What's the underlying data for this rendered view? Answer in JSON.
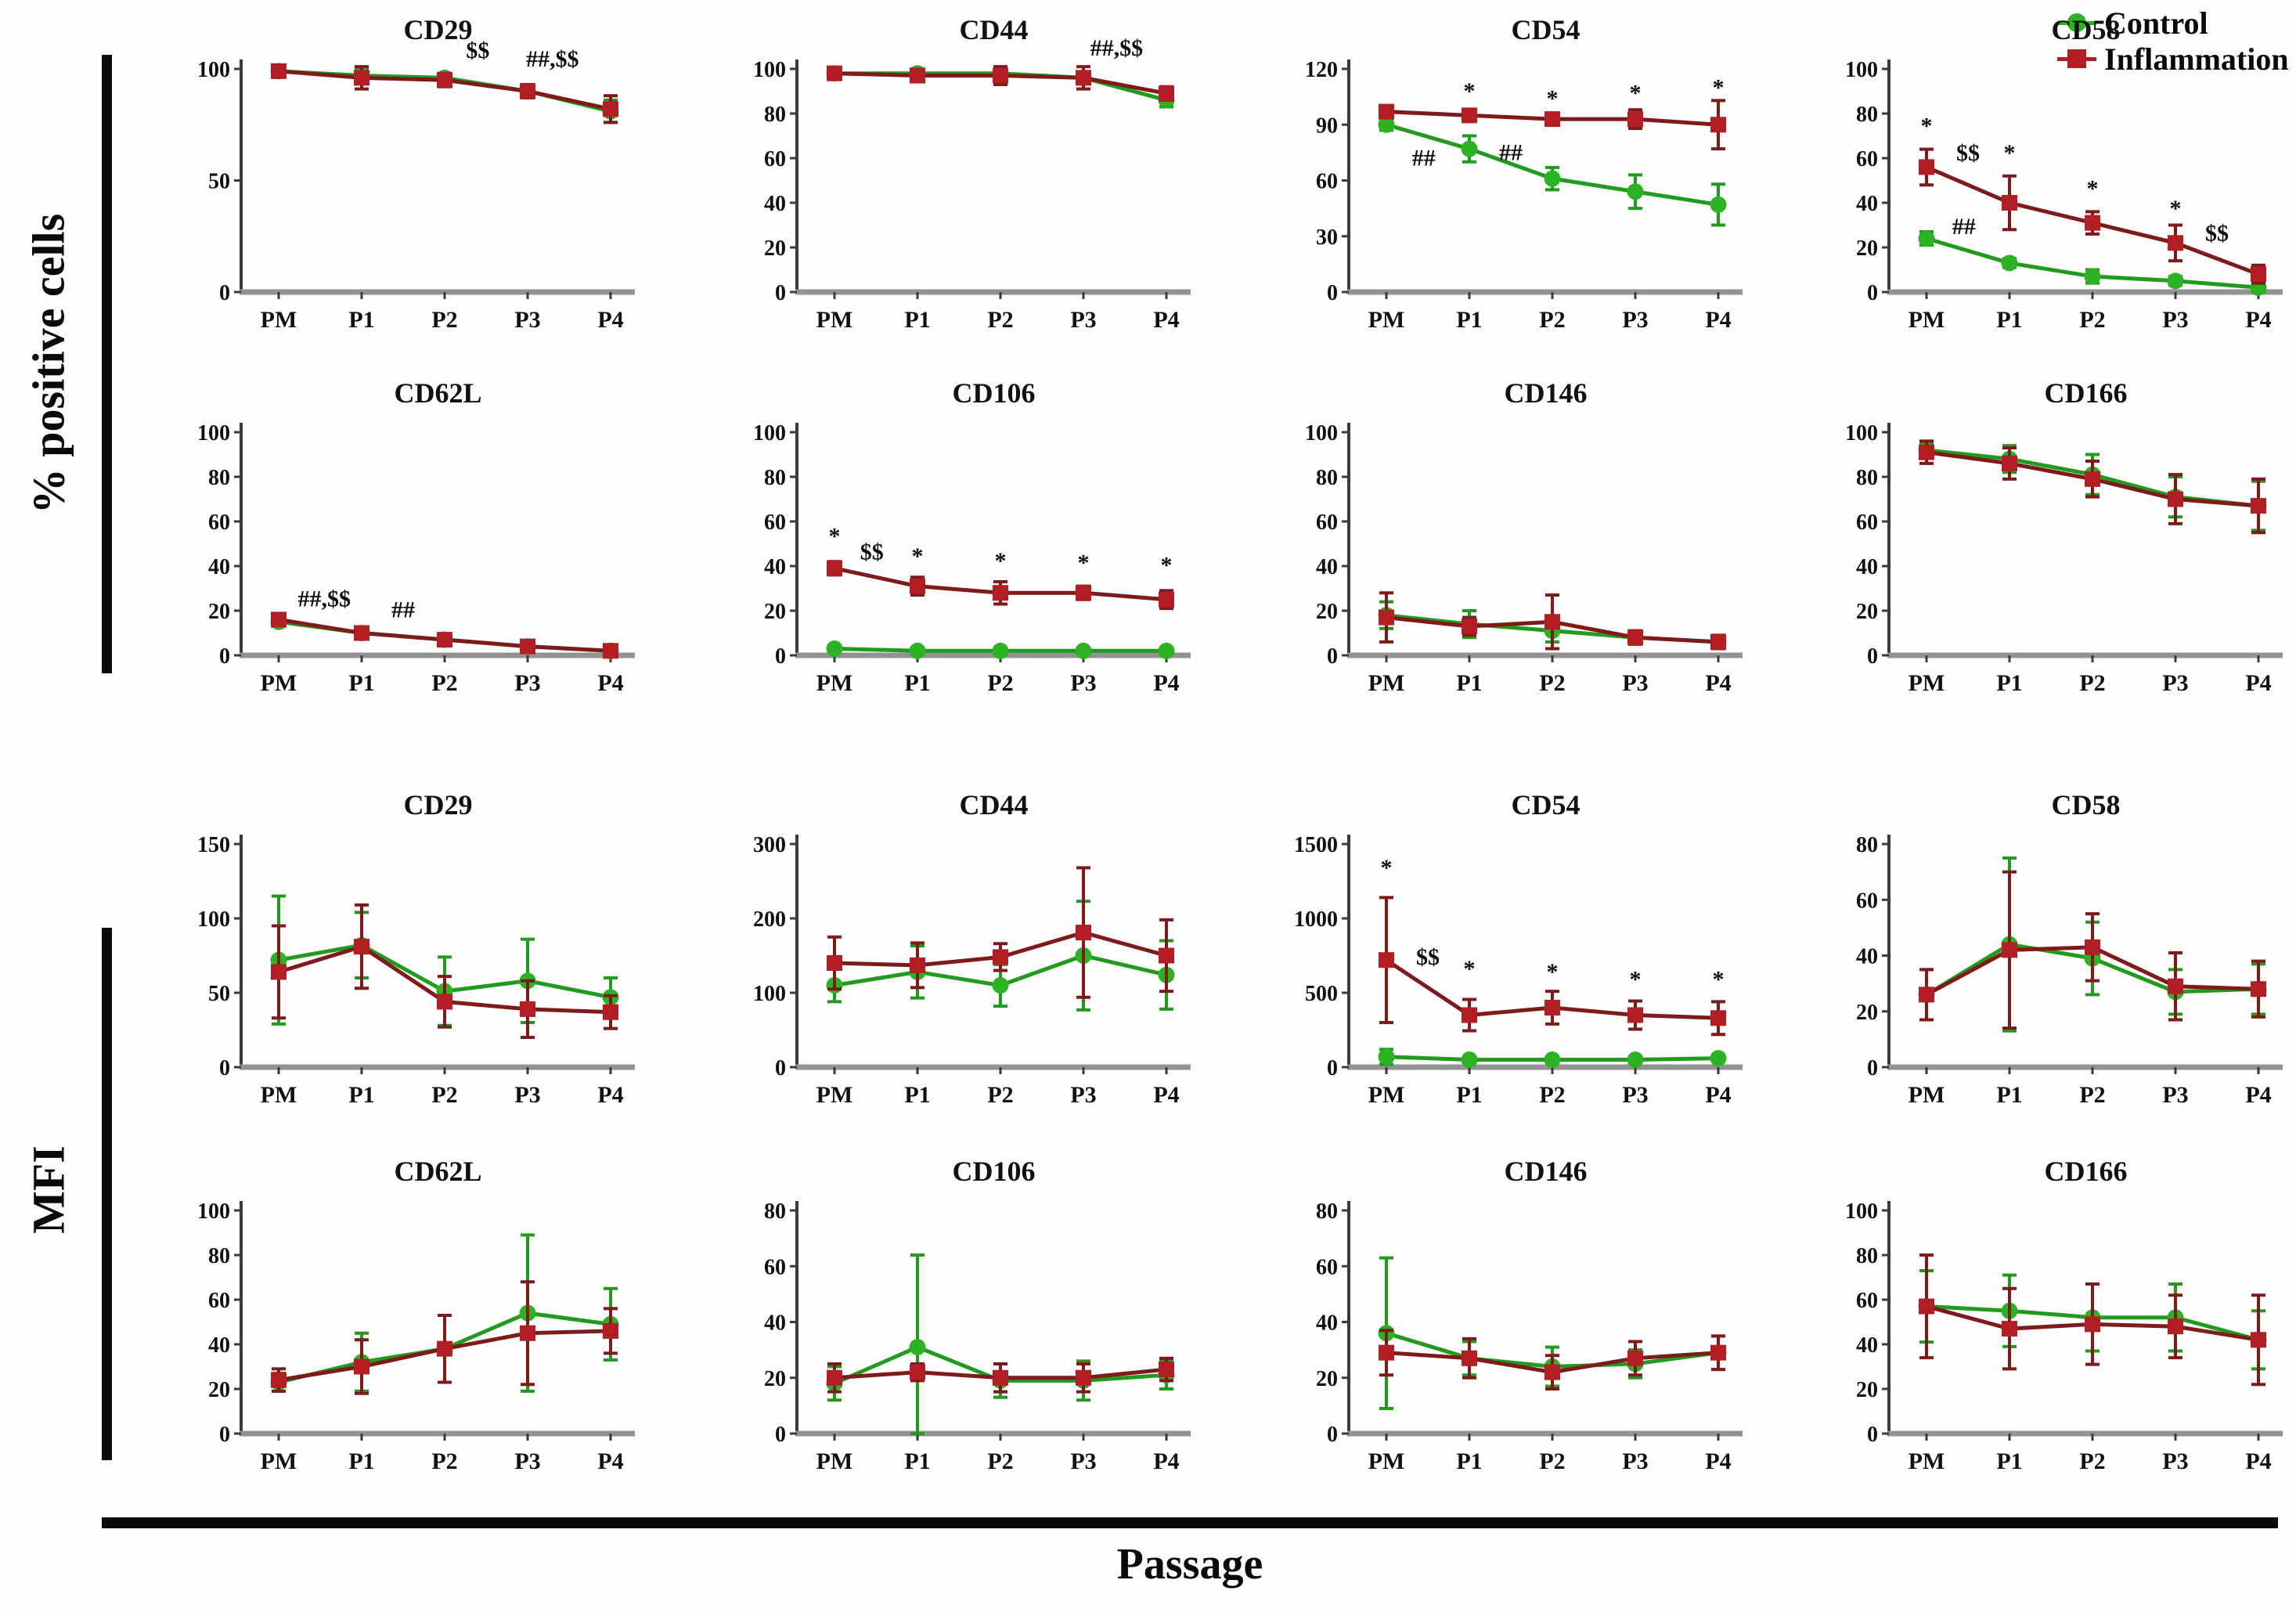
{
  "figure": {
    "categories": [
      "PM",
      "P1",
      "P2",
      "P3",
      "P4"
    ],
    "x_axis_label": "Passage",
    "sections": [
      {
        "label": "% positive cells"
      },
      {
        "label": "MFI"
      }
    ],
    "legend": {
      "items": [
        {
          "label": "Control",
          "marker": "circle",
          "color": "#2BB324",
          "line_color": "#229A1E"
        },
        {
          "label": "Inflammation",
          "marker": "square",
          "color": "#B21E24",
          "line_color": "#7E1A1A"
        }
      ]
    },
    "annotation_color": "#0d0d0d"
  },
  "chart_data": [
    {
      "type": "line",
      "title": "CD29",
      "section": "% positive cells",
      "ylim": [
        0,
        100
      ],
      "yticks": [
        0,
        50,
        100
      ],
      "series": [
        {
          "name": "Control",
          "values": [
            99,
            97,
            96,
            90,
            81
          ],
          "err": [
            1,
            3,
            2,
            2,
            5
          ]
        },
        {
          "name": "Inflammation",
          "values": [
            99,
            96,
            95,
            90,
            82
          ],
          "err": [
            1,
            5,
            3,
            3,
            6
          ]
        }
      ],
      "annotations": [
        {
          "text": "$$",
          "x": 2.4,
          "y": 105
        },
        {
          "text": "##,$$",
          "x": 3.3,
          "y": 101
        }
      ]
    },
    {
      "type": "line",
      "title": "CD44",
      "section": "% positive cells",
      "ylim": [
        0,
        100
      ],
      "yticks": [
        0,
        20,
        40,
        60,
        80,
        100
      ],
      "series": [
        {
          "name": "Control",
          "values": [
            98,
            98,
            98,
            96,
            86
          ],
          "err": [
            1,
            2,
            2,
            2,
            3
          ]
        },
        {
          "name": "Inflammation",
          "values": [
            98,
            97,
            97,
            96,
            89
          ],
          "err": [
            1,
            2,
            4,
            5,
            3
          ]
        }
      ],
      "annotations": [
        {
          "text": "##,$$",
          "x": 3.4,
          "y": 106
        }
      ]
    },
    {
      "type": "line",
      "title": "CD54",
      "section": "% positive cells",
      "ylim": [
        0,
        120
      ],
      "yticks": [
        0,
        30,
        60,
        90,
        120
      ],
      "series": [
        {
          "name": "Control",
          "values": [
            90,
            77,
            61,
            54,
            47
          ],
          "err": [
            3,
            7,
            6,
            9,
            11
          ]
        },
        {
          "name": "Inflammation",
          "values": [
            97,
            95,
            93,
            93,
            90
          ],
          "err": [
            2,
            2,
            2,
            5,
            13
          ]
        }
      ],
      "annotations": [
        {
          "text": "*",
          "x": 1,
          "y": 104
        },
        {
          "text": "*",
          "x": 2,
          "y": 100
        },
        {
          "text": "*",
          "x": 3,
          "y": 103
        },
        {
          "text": "*",
          "x": 4,
          "y": 106
        },
        {
          "text": "##",
          "x": 0.45,
          "y": 68
        },
        {
          "text": "##",
          "x": 1.5,
          "y": 71
        }
      ]
    },
    {
      "type": "line",
      "title": "CD58",
      "section": "% positive cells",
      "ylim": [
        0,
        100
      ],
      "yticks": [
        0,
        20,
        40,
        60,
        80,
        100
      ],
      "series": [
        {
          "name": "Control",
          "values": [
            24,
            13,
            7,
            5,
            2
          ],
          "err": [
            3,
            2,
            3,
            2,
            2
          ]
        },
        {
          "name": "Inflammation",
          "values": [
            56,
            40,
            31,
            22,
            8
          ],
          "err": [
            8,
            12,
            5,
            8,
            4
          ]
        }
      ],
      "annotations": [
        {
          "text": "*",
          "x": 0,
          "y": 71
        },
        {
          "text": "$$",
          "x": 0.5,
          "y": 59
        },
        {
          "text": "*",
          "x": 1,
          "y": 59
        },
        {
          "text": "*",
          "x": 2,
          "y": 43
        },
        {
          "text": "*",
          "x": 3,
          "y": 34
        },
        {
          "text": "##",
          "x": 0.45,
          "y": 26
        },
        {
          "text": "$$",
          "x": 3.5,
          "y": 23
        }
      ]
    },
    {
      "type": "line",
      "title": "CD62L",
      "section": "% positive cells",
      "ylim": [
        0,
        100
      ],
      "yticks": [
        0,
        20,
        40,
        60,
        80,
        100
      ],
      "series": [
        {
          "name": "Control",
          "values": [
            15,
            10,
            7,
            4,
            2
          ],
          "err": [
            2,
            2,
            2,
            1,
            1
          ]
        },
        {
          "name": "Inflammation",
          "values": [
            16,
            10,
            7,
            4,
            2
          ],
          "err": [
            2,
            2,
            2,
            2,
            1
          ]
        }
      ],
      "annotations": [
        {
          "text": "##,$$",
          "x": 0.55,
          "y": 22
        },
        {
          "text": "##",
          "x": 1.5,
          "y": 17
        }
      ]
    },
    {
      "type": "line",
      "title": "CD106",
      "section": "% positive cells",
      "ylim": [
        0,
        100
      ],
      "yticks": [
        0,
        20,
        40,
        60,
        80,
        100
      ],
      "series": [
        {
          "name": "Control",
          "values": [
            3,
            2,
            2,
            2,
            2
          ],
          "err": [
            1,
            1,
            1,
            1,
            1
          ]
        },
        {
          "name": "Inflammation",
          "values": [
            39,
            31,
            28,
            28,
            25
          ],
          "err": [
            3,
            4,
            5,
            3,
            4
          ]
        }
      ],
      "annotations": [
        {
          "text": "*",
          "x": 0,
          "y": 50
        },
        {
          "text": "$$",
          "x": 0.45,
          "y": 43
        },
        {
          "text": "*",
          "x": 1,
          "y": 41
        },
        {
          "text": "*",
          "x": 2,
          "y": 39
        },
        {
          "text": "*",
          "x": 3,
          "y": 38
        },
        {
          "text": "*",
          "x": 4,
          "y": 37
        }
      ]
    },
    {
      "type": "line",
      "title": "CD146",
      "section": "% positive cells",
      "ylim": [
        0,
        100
      ],
      "yticks": [
        0,
        20,
        40,
        60,
        80,
        100
      ],
      "series": [
        {
          "name": "Control",
          "values": [
            18,
            14,
            11,
            8,
            6
          ],
          "err": [
            6,
            6,
            5,
            3,
            2
          ]
        },
        {
          "name": "Inflammation",
          "values": [
            17,
            13,
            15,
            8,
            6
          ],
          "err": [
            11,
            4,
            12,
            3,
            3
          ]
        }
      ],
      "annotations": []
    },
    {
      "type": "line",
      "title": "CD166",
      "section": "% positive cells",
      "ylim": [
        0,
        100
      ],
      "yticks": [
        0,
        20,
        40,
        60,
        80,
        100
      ],
      "series": [
        {
          "name": "Control",
          "values": [
            92,
            88,
            81,
            71,
            67
          ],
          "err": [
            3,
            6,
            9,
            9,
            11
          ]
        },
        {
          "name": "Inflammation",
          "values": [
            91,
            86,
            79,
            70,
            67
          ],
          "err": [
            5,
            7,
            8,
            11,
            12
          ]
        }
      ],
      "annotations": []
    },
    {
      "type": "line",
      "title": "CD29",
      "section": "MFI",
      "ylim": [
        0,
        150
      ],
      "yticks": [
        0,
        50,
        100,
        150
      ],
      "series": [
        {
          "name": "Control",
          "values": [
            72,
            82,
            51,
            58,
            47
          ],
          "err": [
            43,
            22,
            23,
            28,
            13
          ]
        },
        {
          "name": "Inflammation",
          "values": [
            64,
            81,
            44,
            39,
            37
          ],
          "err": [
            31,
            28,
            17,
            19,
            11
          ]
        }
      ],
      "annotations": []
    },
    {
      "type": "line",
      "title": "CD44",
      "section": "MFI",
      "ylim": [
        0,
        300
      ],
      "yticks": [
        0,
        100,
        200,
        300
      ],
      "series": [
        {
          "name": "Control",
          "values": [
            110,
            128,
            110,
            150,
            124
          ],
          "err": [
            22,
            35,
            28,
            73,
            46
          ]
        },
        {
          "name": "Inflammation",
          "values": [
            140,
            137,
            148,
            181,
            150
          ],
          "err": [
            35,
            30,
            18,
            87,
            48
          ]
        }
      ],
      "annotations": []
    },
    {
      "type": "line",
      "title": "CD54",
      "section": "MFI",
      "ylim": [
        0,
        1500
      ],
      "yticks": [
        0,
        500,
        1000,
        1500
      ],
      "series": [
        {
          "name": "Control",
          "values": [
            70,
            50,
            50,
            50,
            60
          ],
          "err": [
            50,
            20,
            20,
            20,
            20
          ]
        },
        {
          "name": "Inflammation",
          "values": [
            720,
            350,
            400,
            350,
            330
          ],
          "err": [
            420,
            105,
            110,
            95,
            110
          ]
        }
      ],
      "annotations": [
        {
          "text": "*",
          "x": 0,
          "y": 1290
        },
        {
          "text": "$$",
          "x": 0.5,
          "y": 690
        },
        {
          "text": "*",
          "x": 1,
          "y": 610
        },
        {
          "text": "*",
          "x": 2,
          "y": 590
        },
        {
          "text": "*",
          "x": 3,
          "y": 540
        },
        {
          "text": "*",
          "x": 4,
          "y": 540
        }
      ]
    },
    {
      "type": "line",
      "title": "CD58",
      "section": "MFI",
      "ylim": [
        0,
        80
      ],
      "yticks": [
        0,
        20,
        40,
        60,
        80
      ],
      "series": [
        {
          "name": "Control",
          "values": [
            26,
            44,
            39,
            27,
            28
          ],
          "err": [
            9,
            31,
            13,
            8,
            9
          ]
        },
        {
          "name": "Inflammation",
          "values": [
            26,
            42,
            43,
            29,
            28
          ],
          "err": [
            9,
            28,
            12,
            12,
            10
          ]
        }
      ],
      "annotations": []
    },
    {
      "type": "line",
      "title": "CD62L",
      "section": "MFI",
      "ylim": [
        0,
        100
      ],
      "yticks": [
        0,
        20,
        40,
        60,
        80,
        100
      ],
      "series": [
        {
          "name": "Control",
          "values": [
            23,
            32,
            38,
            54,
            49
          ],
          "err": [
            4,
            13,
            15,
            35,
            16
          ]
        },
        {
          "name": "Inflammation",
          "values": [
            24,
            30,
            38,
            45,
            46
          ],
          "err": [
            5,
            12,
            15,
            23,
            10
          ]
        }
      ],
      "annotations": []
    },
    {
      "type": "line",
      "title": "CD106",
      "section": "MFI",
      "ylim": [
        0,
        80
      ],
      "yticks": [
        0,
        20,
        40,
        60,
        80
      ],
      "series": [
        {
          "name": "Control",
          "values": [
            18,
            31,
            19,
            19,
            21
          ],
          "err": [
            6,
            33,
            6,
            7,
            5
          ]
        },
        {
          "name": "Inflammation",
          "values": [
            20,
            22,
            20,
            20,
            23
          ],
          "err": [
            5,
            3,
            5,
            5,
            4
          ]
        }
      ],
      "annotations": []
    },
    {
      "type": "line",
      "title": "CD146",
      "section": "MFI",
      "ylim": [
        0,
        80
      ],
      "yticks": [
        0,
        20,
        40,
        60,
        80
      ],
      "series": [
        {
          "name": "Control",
          "values": [
            36,
            27,
            24,
            25,
            29
          ],
          "err": [
            27,
            6,
            7,
            5,
            6
          ]
        },
        {
          "name": "Inflammation",
          "values": [
            29,
            27,
            22,
            27,
            29
          ],
          "err": [
            8,
            7,
            6,
            6,
            6
          ]
        }
      ],
      "annotations": []
    },
    {
      "type": "line",
      "title": "CD166",
      "section": "MFI",
      "ylim": [
        0,
        100
      ],
      "yticks": [
        0,
        20,
        40,
        60,
        80,
        100
      ],
      "series": [
        {
          "name": "Control",
          "values": [
            57,
            55,
            52,
            52,
            42
          ],
          "err": [
            16,
            16,
            15,
            15,
            13
          ]
        },
        {
          "name": "Inflammation",
          "values": [
            57,
            47,
            49,
            48,
            42
          ],
          "err": [
            23,
            18,
            18,
            14,
            20
          ]
        }
      ],
      "annotations": []
    }
  ]
}
